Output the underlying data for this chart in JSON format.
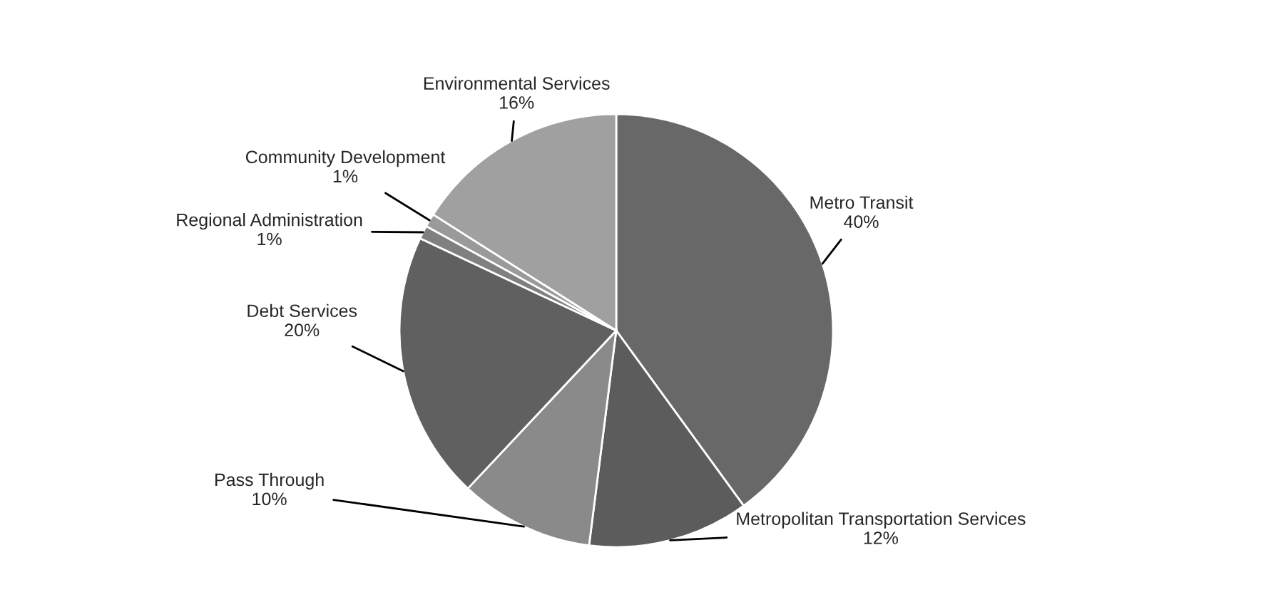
{
  "chart_data": {
    "type": "pie",
    "categories": [
      "Metro Transit",
      "Metropolitan Transportation Services",
      "Pass Through",
      "Debt Services",
      "Regional Administration",
      "Community Development",
      "Environmental Services"
    ],
    "values": [
      40,
      12,
      10,
      20,
      1,
      1,
      16
    ],
    "value_labels": [
      "40%",
      "12%",
      "10%",
      "20%",
      "1%",
      "1%",
      "16%"
    ],
    "colors": [
      "#686868",
      "#5c5c5c",
      "#8a8a8a",
      "#606060",
      "#808080",
      "#9a9a9a",
      "#a0a0a0"
    ],
    "legend": false
  }
}
